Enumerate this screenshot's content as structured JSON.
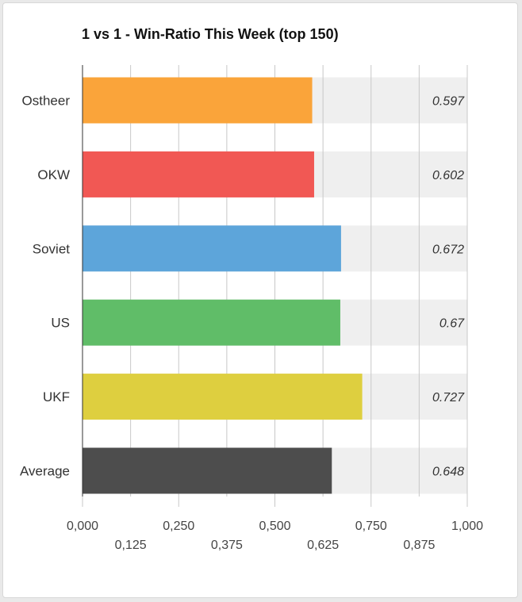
{
  "chart_data": {
    "type": "bar",
    "orientation": "horizontal",
    "title": "1 vs 1 - Win-Ratio This Week (top 150)",
    "categories": [
      "Ostheer",
      "OKW",
      "Soviet",
      "US",
      "UKF",
      "Average"
    ],
    "values": [
      0.597,
      0.602,
      0.672,
      0.67,
      0.727,
      0.648
    ],
    "value_labels": [
      "0.597",
      "0.602",
      "0.672",
      "0.67",
      "0.727",
      "0.648"
    ],
    "colors": [
      "#faa43a",
      "#f15854",
      "#5da5da",
      "#60bd68",
      "#decf3f",
      "#4d4d4d"
    ],
    "background_bar_color": "#efefef",
    "xlim": [
      0,
      1
    ],
    "xticks_major": [
      "0,000",
      "0,250",
      "0,500",
      "0,750",
      "1,000"
    ],
    "xticks_minor": [
      "0,125",
      "0,375",
      "0,625",
      "0,875"
    ],
    "xticks_major_values": [
      0,
      0.25,
      0.5,
      0.75,
      1
    ],
    "xticks_minor_values": [
      0.125,
      0.375,
      0.625,
      0.875
    ],
    "grid": true,
    "xlabel": "",
    "ylabel": ""
  }
}
